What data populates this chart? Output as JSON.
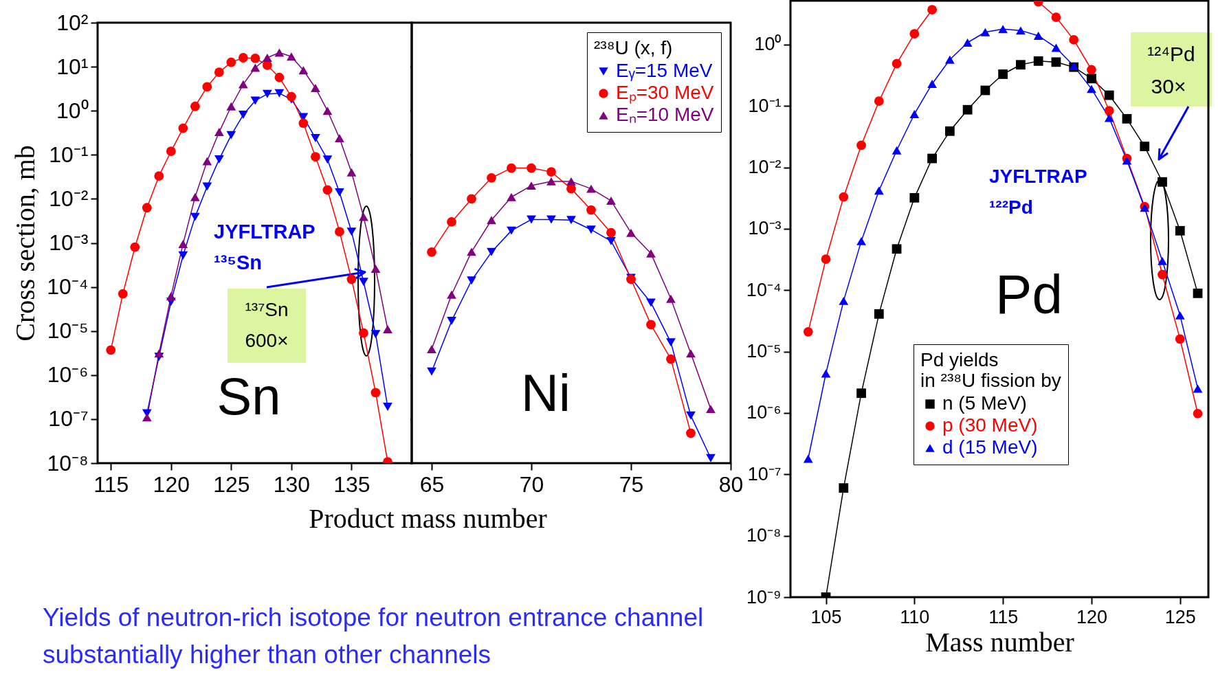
{
  "chart_data": [
    {
      "type": "line",
      "xlabel": "Product mass number",
      "ylabel": "Cross section, mb",
      "log": true,
      "xlim": [
        113.9,
        140
      ],
      "xticks": [
        115,
        120,
        125,
        130,
        135
      ],
      "ylim": [
        1e-08,
        100
      ],
      "yticks": [
        {
          "value": 100,
          "label": "10²"
        },
        {
          "value": 10,
          "label": "10¹"
        },
        {
          "value": 1,
          "label": "10⁰"
        },
        {
          "value": 0.1,
          "label": "10⁻¹"
        },
        {
          "value": 0.01,
          "label": "10⁻²"
        },
        {
          "value": 0.001,
          "label": "10⁻³"
        },
        {
          "value": 0.0001,
          "label": "10⁻⁴"
        },
        {
          "value": 1e-05,
          "label": "10⁻⁵"
        },
        {
          "value": 1e-06,
          "label": "10⁻⁶"
        },
        {
          "value": 1e-07,
          "label": "10⁻⁷"
        },
        {
          "value": 1e-08,
          "label": "10⁻⁸"
        }
      ],
      "series": [
        {
          "color": "#0000ff",
          "marker": "triangle-down",
          "x": [
            118,
            119,
            120,
            121,
            122,
            123,
            124,
            125,
            126,
            127,
            128,
            129,
            130,
            131,
            132,
            133,
            134,
            135,
            136,
            137,
            138
          ],
          "values": [
            1.35e-07,
            2.6e-06,
            4.6e-05,
            0.00052,
            0.0039,
            0.019,
            0.079,
            0.28,
            0.81,
            1.7,
            2.4,
            2.5,
            1.8,
            0.72,
            0.24,
            0.078,
            0.014,
            0.0018,
            0.00013,
            8.5e-06,
            1.9e-07
          ]
        },
        {
          "color": "#ff0000",
          "marker": "circle",
          "x": [
            115,
            116,
            117,
            118,
            119,
            120,
            121,
            122,
            123,
            124,
            125,
            126,
            127,
            128,
            129,
            130,
            131,
            132,
            133,
            134,
            135,
            136,
            137,
            138
          ],
          "values": [
            3.7e-06,
            7e-05,
            0.0008,
            0.0063,
            0.033,
            0.12,
            0.4,
            1.26,
            3.5,
            7.5,
            12.6,
            16,
            15.5,
            10.8,
            5.7,
            2.1,
            0.52,
            0.09,
            0.016,
            0.0018,
            0.00015,
            9e-06,
            4e-07,
            1.07e-08
          ]
        },
        {
          "color": "#800080",
          "marker": "triangle",
          "x": [
            118,
            119,
            120,
            121,
            122,
            123,
            124,
            125,
            126,
            127,
            128,
            129,
            130,
            131,
            132,
            133,
            134,
            135,
            136,
            137,
            138
          ],
          "values": [
            1.1e-07,
            3.1e-06,
            6.2e-05,
            0.00095,
            0.011,
            0.072,
            0.33,
            1.26,
            4.0,
            9.5,
            16,
            21,
            17,
            8.3,
            3.3,
            1.0,
            0.24,
            0.04,
            0.0039,
            0.00026,
            1.1e-05
          ]
        }
      ],
      "annotations": [
        "JYFLTRAP",
        "¹³⁵Sn",
        "¹³⁷Sn",
        "600×",
        "Sn",
        "Yields of neutron-rich isotope for neutron entrance channel substantially higher than other channels"
      ]
    },
    {
      "type": "line",
      "log": true,
      "tick_labels": "x",
      "xlim": [
        64,
        80
      ],
      "xticks": [
        65,
        70,
        75,
        80
      ],
      "ylim": [
        1e-08,
        100
      ],
      "yticks": [
        {
          "value": 100,
          "label": null
        },
        {
          "value": 10,
          "label": null
        },
        {
          "value": 1,
          "label": null
        },
        {
          "value": 0.1,
          "label": null
        },
        {
          "value": 0.01,
          "label": null
        },
        {
          "value": 0.001,
          "label": null
        },
        {
          "value": 0.0001,
          "label": null
        },
        {
          "value": 1e-05,
          "label": null
        },
        {
          "value": 1e-06,
          "label": null
        },
        {
          "value": 1e-07,
          "label": null
        },
        {
          "value": 1e-08,
          "label": null
        }
      ],
      "legend": "top right",
      "legend_title": "²³⁸U (x, f)",
      "series": [
        {
          "name": "Eᵧ=15 MeV",
          "color": "#0000ff",
          "marker": "triangle-down",
          "x": [
            65,
            66,
            67,
            68,
            69,
            70,
            71,
            72,
            73,
            74,
            75,
            76,
            77,
            78,
            79
          ],
          "values": [
            1.2e-06,
            1.7e-05,
            0.00014,
            0.00062,
            0.0019,
            0.0034,
            0.0034,
            0.0033,
            0.002,
            0.0011,
            0.00016,
            4.4e-05,
            5.5e-06,
            1.2e-07,
            1.3e-08
          ]
        },
        {
          "name": "Eₚ=30 MeV",
          "color": "#ff0000",
          "marker": "circle",
          "x": [
            65,
            66,
            67,
            68,
            69,
            70,
            71,
            72,
            73,
            74,
            75,
            76,
            77,
            78
          ],
          "values": [
            0.00062,
            0.003,
            0.01,
            0.03,
            0.05,
            0.05,
            0.041,
            0.017,
            0.0056,
            0.0017,
            0.00015,
            1.4e-05,
            2.3e-06,
            4.8e-08
          ]
        },
        {
          "name": "Eₙ=10 MeV",
          "color": "#800080",
          "marker": "triangle",
          "x": [
            65,
            66,
            67,
            68,
            69,
            70,
            71,
            72,
            73,
            74,
            75,
            76,
            77,
            78,
            79
          ],
          "values": [
            3.9e-06,
            6.7e-05,
            0.00063,
            0.0033,
            0.011,
            0.02,
            0.025,
            0.025,
            0.017,
            0.0091,
            0.0017,
            0.00058,
            5.4e-05,
            3.1e-06,
            1.7e-07
          ]
        }
      ],
      "annotations": [
        "Ni"
      ]
    },
    {
      "type": "line",
      "xlabel": "Mass number",
      "log": true,
      "xlim": [
        103,
        126.6
      ],
      "xticks": [
        105,
        110,
        115,
        120,
        125
      ],
      "ylim": [
        1e-09,
        5.2
      ],
      "yticks": [
        {
          "value": 1,
          "label": "10⁰"
        },
        {
          "value": 0.1,
          "label": "10⁻¹"
        },
        {
          "value": 0.01,
          "label": "10⁻²"
        },
        {
          "value": 0.001,
          "label": "10⁻³"
        },
        {
          "value": 0.0001,
          "label": "10⁻⁴"
        },
        {
          "value": 1e-05,
          "label": "10⁻⁵"
        },
        {
          "value": 1e-06,
          "label": "10⁻⁶"
        },
        {
          "value": 1e-07,
          "label": "10⁻⁷"
        },
        {
          "value": 1e-08,
          "label": "10⁻⁸"
        },
        {
          "value": 1e-09,
          "label": "10⁻⁹"
        }
      ],
      "legend": "bottom left",
      "legend_title": "Pd yields\nin ²³⁸U fission by",
      "series": [
        {
          "name": "n (5 MeV)",
          "color": "#000000",
          "marker": "square",
          "x": [
            105,
            106,
            107,
            108,
            109,
            110,
            111,
            112,
            113,
            114,
            115,
            116,
            117,
            118,
            119,
            120,
            121,
            122,
            123,
            124,
            125,
            126
          ],
          "values": [
            1e-09,
            6e-08,
            2.1e-06,
            4.1e-05,
            0.00047,
            0.0032,
            0.014,
            0.039,
            0.087,
            0.18,
            0.33,
            0.47,
            0.54,
            0.52,
            0.43,
            0.28,
            0.15,
            0.062,
            0.022,
            0.0058,
            0.00093,
            8.9e-05
          ]
        },
        {
          "name": "p (30 MeV)",
          "color": "#ff0000",
          "marker": "circle",
          "x": [
            104,
            105,
            106,
            107,
            108,
            109,
            110,
            111,
            112,
            113,
            114,
            115,
            116,
            117,
            118,
            119,
            120,
            121,
            122,
            123,
            124,
            125,
            126
          ],
          "values": [
            2.1e-05,
            0.00032,
            0.0033,
            0.023,
            0.12,
            0.49,
            1.5,
            3.7,
            null,
            null,
            null,
            null,
            null,
            5.0,
            2.8,
            1.2,
            0.39,
            0.084,
            0.014,
            0.0023,
            0.00018,
            1.6e-05,
            9.8e-07
          ]
        },
        {
          "name": "d (15 MeV)",
          "color": "#0000ff",
          "marker": "triangle",
          "x": [
            104,
            105,
            106,
            107,
            108,
            109,
            110,
            111,
            112,
            113,
            114,
            115,
            116,
            117,
            118,
            119,
            120,
            121,
            122,
            123,
            124,
            125,
            126
          ],
          "values": [
            1.8e-07,
            4.4e-06,
            6.7e-05,
            0.00063,
            0.0042,
            0.019,
            0.074,
            0.23,
            0.57,
            1.08,
            1.6,
            1.8,
            1.7,
            1.4,
            0.89,
            0.45,
            0.19,
            0.064,
            0.013,
            0.0022,
            0.0003,
            3.9e-05,
            2.5e-06
          ]
        }
      ],
      "annotations": [
        "JYFLTRAP",
        "¹²²Pd",
        "¹²⁴Pd",
        "30×",
        "Pd"
      ]
    }
  ]
}
